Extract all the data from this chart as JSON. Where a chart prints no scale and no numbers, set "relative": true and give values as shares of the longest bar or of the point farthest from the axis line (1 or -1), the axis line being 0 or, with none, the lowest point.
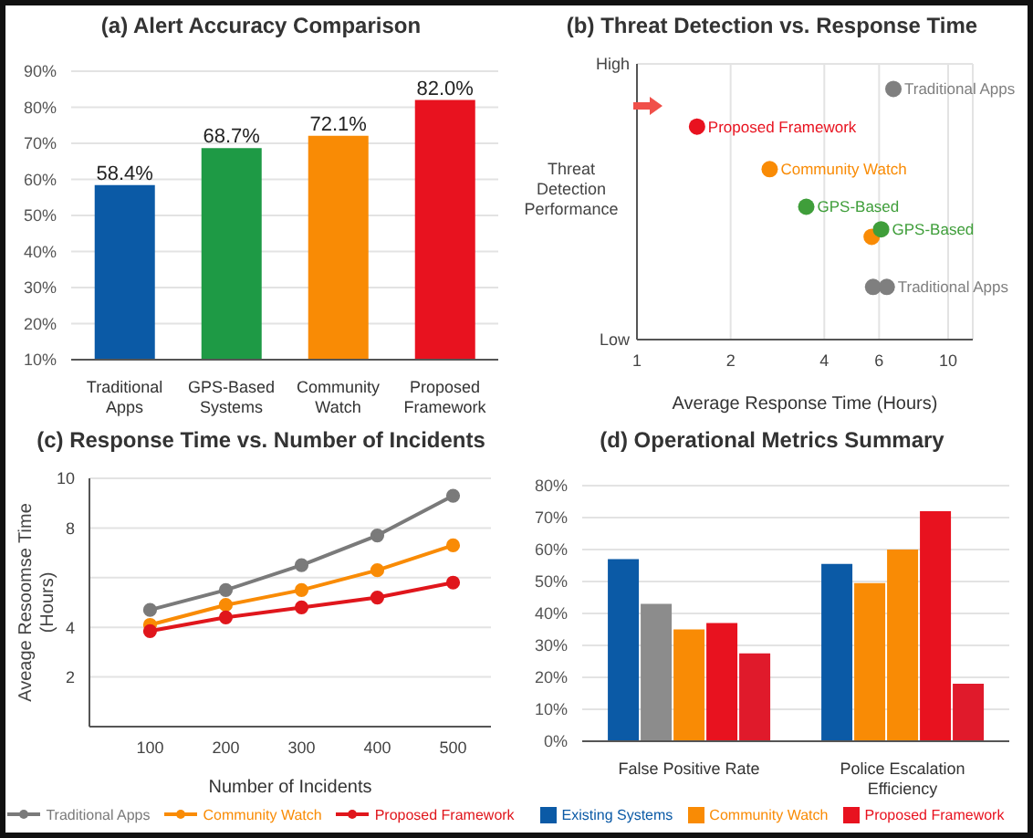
{
  "chart_data": [
    {
      "type": "bar",
      "title": "(a) Alert Accuracy Comparison",
      "categories": [
        "Traditional Apps",
        "GPS-Based Systems",
        "Community Watch",
        "Proposed Framework"
      ],
      "values": [
        58.4,
        68.7,
        72.1,
        82.0
      ],
      "colors": [
        "#0b5aa6",
        "#1e9a45",
        "#f98b05",
        "#e8121f"
      ],
      "value_labels": [
        "58.4%",
        "68.7%",
        "72.1%",
        "82.0%"
      ],
      "ylim": [
        10,
        90
      ],
      "yticks": [
        {
          "value": 10,
          "label": "10%"
        },
        {
          "value": 20,
          "label": "20%"
        },
        {
          "value": 30,
          "label": "30%"
        },
        {
          "value": 40,
          "label": "40%"
        },
        {
          "value": 50,
          "label": "50%"
        },
        {
          "value": 60,
          "label": "60%"
        },
        {
          "value": 70,
          "label": "70%"
        },
        {
          "value": 80,
          "label": "80%"
        },
        {
          "value": 90,
          "label": "90%"
        }
      ],
      "grid": "y"
    },
    {
      "type": "scatter",
      "title": "(b) Threat Detection vs. Response Time",
      "xlabel": "Average Response Time (Hours)",
      "ylabel": "Threat Detection Performance",
      "xlim": [
        1,
        12
      ],
      "xticks": [
        1,
        2,
        4,
        6,
        10
      ],
      "log": "x",
      "relative": true,
      "grid": true,
      "series": [
        {
          "color": "#7f7f7f",
          "x": [
            6.67,
            5.74,
            6.35
          ],
          "values": [
            1,
            0.21,
            0.21
          ]
        },
        {
          "color": "#e8121f",
          "x": [
            1.56
          ],
          "values": [
            0.85
          ]
        },
        {
          "color": "#f98b05",
          "x": [
            2.67,
            5.68
          ],
          "values": [
            0.68,
            0.41
          ]
        },
        {
          "color": "#3f9e3a",
          "x": [
            3.5,
            6.09
          ],
          "values": [
            0.53,
            0.44
          ]
        }
      ],
      "annotations": [
        "High",
        "Low",
        {
          "text": "Traditional Apps",
          "x": 6.67,
          "y": 1
        },
        {
          "text": "Proposed Framework",
          "x": 1.56,
          "y": 0.85
        },
        {
          "text": "Community Watch",
          "x": 2.67,
          "y": 0.68
        },
        {
          "text": "GPS-Based",
          "x": 3.5,
          "y": 0.53
        },
        {
          "text": "GPS-Based",
          "x": 6.09,
          "y": 0.44
        },
        {
          "text": "Traditional Apps",
          "x": 6.35,
          "y": 0.21
        }
      ]
    },
    {
      "type": "line",
      "title": "(c) Response Time vs. Number of Incidents",
      "xlabel": "Number of Incidents",
      "ylabel": "Aveage Resoomse Time (Hours)",
      "x": [
        100,
        200,
        300,
        400,
        500
      ],
      "xlim": [
        20,
        550
      ],
      "xticks": [
        100,
        200,
        300,
        400,
        500
      ],
      "ylim": [
        0,
        10
      ],
      "yticks": [
        2,
        4,
        {
          "value": 6,
          "label": null
        },
        8,
        10
      ],
      "grid": "y",
      "legend": "bottom",
      "marker": "circle",
      "series": [
        {
          "name": "Traditional Apps",
          "color": "#7a7a7a",
          "values": [
            4.7,
            5.5,
            6.5,
            7.7,
            9.3
          ]
        },
        {
          "name": "Community Watch",
          "color": "#f98b05",
          "values": [
            4.1,
            4.9,
            5.5,
            6.3,
            7.3
          ]
        },
        {
          "name": "Proposed Framework",
          "color": "#e0161c",
          "values": [
            3.85,
            4.4,
            4.8,
            5.2,
            5.8
          ]
        }
      ]
    },
    {
      "type": "bar",
      "title": "(d) Operational Metrics Summary",
      "categories": [
        "False Positive Rate",
        "Police Escalation Efficiency"
      ],
      "ylim": [
        0,
        80
      ],
      "yticks": [
        {
          "value": 0,
          "label": "0%"
        },
        {
          "value": 10,
          "label": "10%"
        },
        {
          "value": 20,
          "label": "20%"
        },
        {
          "value": 30,
          "label": "30%"
        },
        {
          "value": 40,
          "label": "40%"
        },
        {
          "value": 50,
          "label": "50%"
        },
        {
          "value": 60,
          "label": "60%"
        },
        {
          "value": 70,
          "label": "70%"
        },
        {
          "value": 80,
          "label": "80%"
        }
      ],
      "grid": "y",
      "legend": "bottom",
      "series": [
        {
          "name": "Existing Systems",
          "color": "#0b5aa6",
          "values": [
            57,
            55.5
          ]
        },
        {
          "colors": [
            "#8c8c8c",
            "#f98b05"
          ],
          "values": [
            43,
            49.5
          ]
        },
        {
          "name": "Community Watch",
          "color": "#f98b05",
          "values": [
            35,
            60
          ]
        },
        {
          "name": "Proposed Framework",
          "color": "#e8121f",
          "values": [
            37,
            72
          ]
        },
        {
          "colors": [
            "#e01a2b",
            "#e01a2b"
          ],
          "values": [
            27.5,
            18
          ]
        }
      ]
    }
  ]
}
